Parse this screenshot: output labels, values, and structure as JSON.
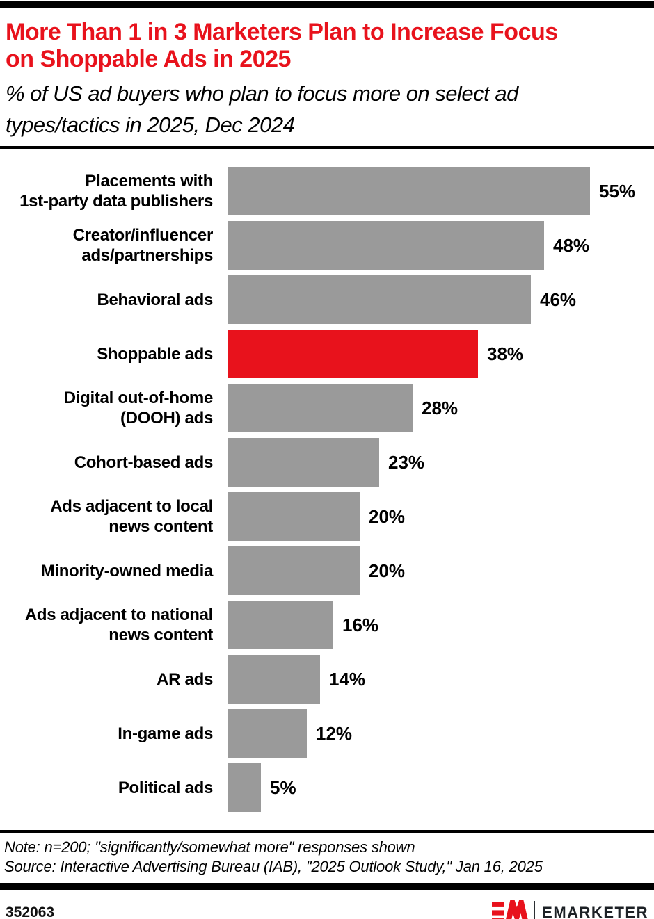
{
  "header": {
    "title_lines": [
      "More Than 1 in 3 Marketers Plan to Increase Focus",
      "on Shoppable Ads in 2025"
    ],
    "subtitle_lines": [
      "% of US ad buyers who plan to focus more on select ad",
      "types/tactics in 2025, Dec 2024"
    ]
  },
  "chart_data": {
    "type": "bar",
    "orientation": "horizontal",
    "title": "More Than 1 in 3 Marketers Plan to Increase Focus on Shoppable Ads in 2025",
    "subtitle": "% of US ad buyers who plan to focus more on select ad types/tactics in 2025, Dec 2024",
    "categories": [
      [
        "Placements with",
        "1st-party data publishers"
      ],
      [
        "Creator/influencer",
        "ads/partnerships"
      ],
      [
        "Behavioral ads"
      ],
      [
        "Shoppable ads"
      ],
      [
        "Digital out-of-home",
        "(DOOH) ads"
      ],
      [
        "Cohort-based ads"
      ],
      [
        "Ads adjacent to local",
        "news content"
      ],
      [
        "Minority-owned media"
      ],
      [
        "Ads adjacent to national",
        "news content"
      ],
      [
        "AR ads"
      ],
      [
        "In-game ads"
      ],
      [
        "Political ads"
      ]
    ],
    "values": [
      55,
      48,
      46,
      38,
      28,
      23,
      20,
      20,
      16,
      14,
      12,
      5
    ],
    "value_suffix": "%",
    "highlight_index": 3,
    "highlight_category": "Shoppable ads",
    "bar_color": "#9A9A9A",
    "highlight_color": "#E8121C",
    "xlim": [
      0,
      58
    ],
    "grid": false,
    "legend": false
  },
  "notes": {
    "note": "Note: n=200; \"significantly/somewhat more\" responses shown",
    "source": "Source: Interactive Advertising Bureau (IAB), \"2025 Outlook Study,\" Jan 16, 2025"
  },
  "footer": {
    "chart_id": "352063",
    "brand": "EMARKETER"
  },
  "colors": {
    "accent_red": "#E8121C",
    "bar_gray": "#9A9A9A",
    "rule_black": "#000000",
    "wordmark_dark": "#1d2126"
  }
}
